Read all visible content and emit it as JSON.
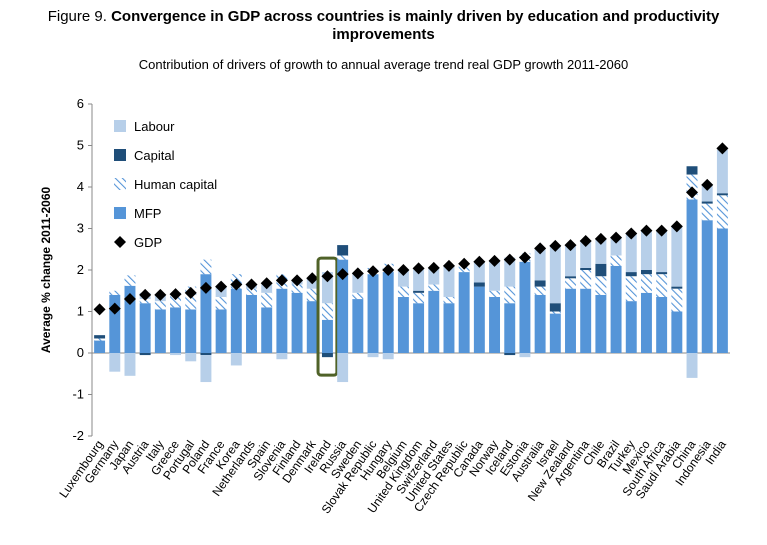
{
  "chart_data": {
    "type": "stacked_bar",
    "title_prefix": "Figure 9.",
    "title": "Convergence in GDP across countries is mainly driven by education and productivity improvements",
    "subtitle": "Contribution of drivers of growth to annual average trend real GDP growth 2011-2060",
    "y_label": "Average % change 2011-2060",
    "categories": [
      "Luxembourg",
      "Germany",
      "Japan",
      "Austria",
      "Italy",
      "Greece",
      "Portugal",
      "Poland",
      "France",
      "Korea",
      "Netherlands",
      "Spain",
      "Slovenia",
      "Finland",
      "Denmark",
      "Ireland",
      "Russia",
      "Sweden",
      "Slovak Republic",
      "Hungary",
      "Belgium",
      "United Kingdom",
      "Switzerland",
      "United States",
      "Czech Republic",
      "Canada",
      "Norway",
      "Iceland",
      "Estonia",
      "Australia",
      "Israel",
      "New Zealand",
      "Argentina",
      "Chile",
      "Brazil",
      "Turkey",
      "Mexico",
      "South Africa",
      "Saudi Arabia",
      "China",
      "Indonesia",
      "India"
    ],
    "series": [
      {
        "name": "MFP",
        "color": "#5595d8",
        "values": [
          0.3,
          1.4,
          1.62,
          1.2,
          1.05,
          1.1,
          1.05,
          1.9,
          1.05,
          1.55,
          1.4,
          1.1,
          1.55,
          1.45,
          1.25,
          0.8,
          2.25,
          1.3,
          1.9,
          1.95,
          1.35,
          1.2,
          1.5,
          1.2,
          1.95,
          1.6,
          1.35,
          1.2,
          2.2,
          1.4,
          0.95,
          1.55,
          1.55,
          1.4,
          2.1,
          1.25,
          1.45,
          1.35,
          1.0,
          3.7,
          3.2,
          3.0
        ]
      },
      {
        "name": "Human capital",
        "color": "#5595d8",
        "pattern": "hatch",
        "values": [
          0.05,
          0.1,
          0.25,
          0.1,
          0.2,
          0.35,
          0.55,
          0.35,
          0.3,
          0.35,
          0.15,
          0.35,
          0.35,
          0.2,
          0.3,
          0.4,
          0.1,
          0.15,
          0.15,
          0.2,
          0.25,
          0.25,
          0.15,
          0.15,
          0.2,
          0.0,
          0.15,
          0.4,
          0.2,
          0.2,
          0.05,
          0.25,
          0.45,
          0.45,
          0.25,
          0.6,
          0.45,
          0.55,
          0.55,
          0.6,
          0.4,
          0.8
        ]
      },
      {
        "name": "Capital",
        "color": "#1f4e79",
        "values": [
          0.08,
          0.0,
          0.0,
          -0.05,
          0.0,
          0.0,
          0.0,
          -0.05,
          0.0,
          0.0,
          0.0,
          0.0,
          0.0,
          0.0,
          0.0,
          -0.1,
          0.25,
          0.0,
          0.0,
          0.0,
          0.0,
          0.05,
          0.0,
          0.0,
          0.0,
          0.1,
          0.0,
          -0.05,
          0.0,
          0.15,
          0.2,
          0.05,
          0.05,
          0.3,
          0.0,
          0.1,
          0.1,
          0.05,
          0.05,
          0.2,
          0.05,
          0.05
        ]
      },
      {
        "name": "Labour",
        "color": "#b7cfe9",
        "values": [
          0.0,
          -0.45,
          -0.55,
          0.15,
          0.15,
          -0.05,
          -0.2,
          -0.65,
          0.25,
          -0.3,
          0.1,
          0.2,
          -0.15,
          0.1,
          0.25,
          0.75,
          -0.7,
          0.47,
          -0.1,
          -0.15,
          0.4,
          0.54,
          0.4,
          0.75,
          0.0,
          0.5,
          0.72,
          0.7,
          -0.1,
          0.77,
          1.38,
          0.75,
          0.65,
          0.6,
          0.43,
          0.93,
          0.95,
          1.0,
          1.45,
          -0.6,
          0.4,
          1.05
        ]
      }
    ],
    "gdp": {
      "name": "GDP",
      "color": "#000000",
      "values": [
        1.05,
        1.07,
        1.3,
        1.4,
        1.4,
        1.42,
        1.45,
        1.57,
        1.6,
        1.65,
        1.65,
        1.68,
        1.75,
        1.75,
        1.8,
        1.85,
        1.9,
        1.92,
        1.97,
        2.0,
        2.0,
        2.04,
        2.05,
        2.1,
        2.15,
        2.2,
        2.22,
        2.25,
        2.3,
        2.52,
        2.58,
        2.6,
        2.7,
        2.75,
        2.78,
        2.88,
        2.95,
        2.95,
        3.05,
        3.87,
        4.05,
        4.93
      ]
    },
    "highlight": "Ireland",
    "highlight_color": "#4f6228",
    "ylim": [
      -2,
      6
    ],
    "yticks": [
      -2,
      -1,
      0,
      1,
      2,
      3,
      4,
      5,
      6
    ],
    "legend": "upper left"
  }
}
